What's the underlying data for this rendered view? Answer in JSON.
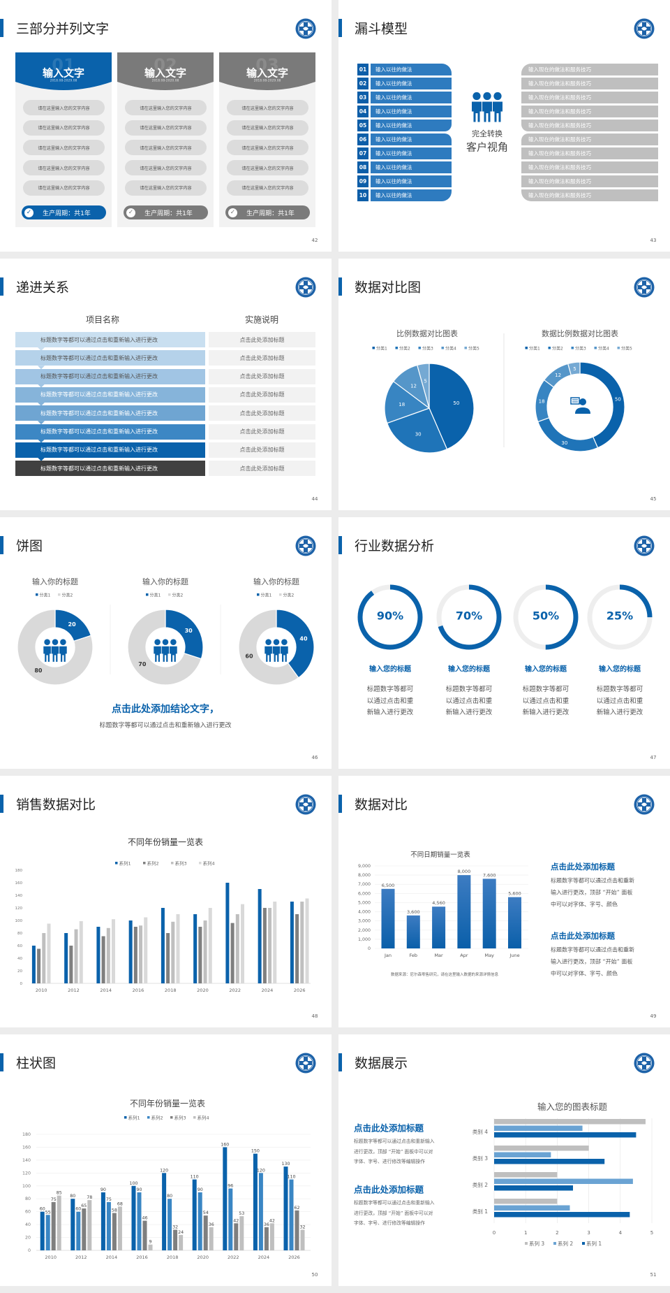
{
  "colors": {
    "accent": "#0a62ab",
    "accent_mid": "#2e7bbf",
    "gray_dark": "#7f7f7f",
    "gray_light": "#d9d9d9",
    "panel": "#f2f2f2",
    "dark_row": "#404040"
  },
  "slides": [
    {
      "title": "三部分并列文字",
      "page": "42",
      "columns": [
        {
          "number": "01",
          "header": "输入文字",
          "date": "2018.08-2029.08",
          "active": true,
          "items": [
            "请在这里输入您的文字内容",
            "请在这里输入您的文字内容",
            "请在这里输入您的文字内容",
            "请在这里输入您的文字内容",
            "请在这里输入您的文字内容"
          ],
          "footer": "生产周期：共1年"
        },
        {
          "number": "02",
          "header": "输入文字",
          "date": "2018.08-2020.08",
          "active": false,
          "items": [
            "请在这里输入您的文字内容",
            "请在这里输入您的文字内容",
            "请在这里输入您的文字内容",
            "请在这里输入您的文字内容",
            "请在这里输入您的文字内容"
          ],
          "footer": "生产周期：共1年"
        },
        {
          "number": "03",
          "header": "输入文字",
          "date": "2018.08-2029.08",
          "active": false,
          "items": [
            "请在这里输入您的文字内容",
            "请在这里输入您的文字内容",
            "请在这里输入您的文字内容",
            "请在这里输入您的文字内容",
            "请在这里输入您的文字内容"
          ],
          "footer": "生产周期：共1年"
        }
      ]
    },
    {
      "title": "漏斗模型",
      "page": "43",
      "left_items": [
        {
          "num": "01",
          "label": "输入以往的做法"
        },
        {
          "num": "02",
          "label": "输入以往的做法"
        },
        {
          "num": "03",
          "label": "输入以往的做法"
        },
        {
          "num": "04",
          "label": "输入以往的做法"
        },
        {
          "num": "05",
          "label": "输入以往的做法"
        },
        {
          "num": "06",
          "label": "输入以往的做法"
        },
        {
          "num": "07",
          "label": "输入以往的做法"
        },
        {
          "num": "08",
          "label": "输入以往的做法"
        },
        {
          "num": "09",
          "label": "输入以往的做法"
        },
        {
          "num": "10",
          "label": "输入以往的做法"
        }
      ],
      "right_items": [
        "输入现在的做法和服务技巧",
        "输入现在的做法和服务技巧",
        "输入现在的做法和服务技巧",
        "输入现在的做法和服务技巧",
        "输入现在的做法和服务技巧",
        "输入现在的做法和服务技巧",
        "输入现在的做法和服务技巧",
        "输入现在的做法和服务技巧",
        "输入现在的做法和服务技巧",
        "输入现在的做法和服务技巧"
      ],
      "center_line1": "完全转换",
      "center_line2": "客户视角"
    },
    {
      "title": "递进关系",
      "page": "44",
      "col1_header": "项目名称",
      "col2_header": "实施说明",
      "rows": [
        {
          "label": "标题数字等都可以通过点击和重新输入进行更改",
          "note": "点击此处添加标题"
        },
        {
          "label": "标题数字等都可以通过点击和重新输入进行更改",
          "note": "点击此处添加标题"
        },
        {
          "label": "标题数字等都可以通过点击和重新输入进行更改",
          "note": "点击此处添加标题"
        },
        {
          "label": "标题数字等都可以通过点击和重新输入进行更改",
          "note": "点击此处添加标题"
        },
        {
          "label": "标题数字等都可以通过点击和重新输入进行更改",
          "note": "点击此处添加标题"
        },
        {
          "label": "标题数字等都可以通过点击和重新输入进行更改",
          "note": "点击此处添加标题"
        },
        {
          "label": "标题数字等都可以通过点击和重新输入进行更改",
          "note": "点击此处添加标题"
        },
        {
          "label": "标题数字等都可以通过点击和重新输入进行更改",
          "note": "点击此处添加标题"
        }
      ]
    },
    {
      "title": "数据对比图",
      "page": "45"
    },
    {
      "title": "饼图",
      "page": "46",
      "conclusion_title": "点击此处添加结论文字，",
      "conclusion_text": "标题数字等都可以通过点击和重新输入进行更改"
    },
    {
      "title": "行业数据分析",
      "page": "47",
      "items": [
        {
          "percent_label": "90%",
          "percent": 90,
          "title": "输入您的标题",
          "lines": [
            "标题数字等都可",
            "以通过点击和重",
            "新输入进行更改"
          ]
        },
        {
          "percent_label": "70%",
          "percent": 70,
          "title": "输入您的标题",
          "lines": [
            "标题数字等都可",
            "以通过点击和重",
            "新输入进行更改"
          ]
        },
        {
          "percent_label": "50%",
          "percent": 50,
          "title": "输入您的标题",
          "lines": [
            "标题数字等都可",
            "以通过点击和重",
            "新输入进行更改"
          ]
        },
        {
          "percent_label": "25%",
          "percent": 25,
          "title": "输入您的标题",
          "lines": [
            "标题数字等都可",
            "以通过点击和重",
            "新输入进行更改"
          ]
        }
      ]
    },
    {
      "title": "销售数据对比",
      "page": "48"
    },
    {
      "title": "数据对比",
      "page": "49",
      "source": "数据来源：尼尔森零售研究，请在这里输入数据的来源详情信息",
      "blocks": [
        {
          "title": "点击此处添加标题",
          "lines": [
            "标题数字等都可以通过点击和重新",
            "输入进行更改，顶部 “开始” 面板",
            "中可以对字体、字号、颜色"
          ]
        },
        {
          "title": "点击此处添加标题",
          "lines": [
            "标题数字等都可以通过点击和重新",
            "输入进行更改，顶部 “开始” 面板",
            "中可以对字体、字号、颜色"
          ]
        }
      ]
    },
    {
      "title": "柱状图",
      "page": "50"
    },
    {
      "title": "数据展示",
      "page": "51",
      "blocks": [
        {
          "title": "点击此处添加标题",
          "lines": [
            "标题数字等都可以通过点击和重新输入",
            "进行更改，顶部 “开始” 面板中可以对",
            "字体、字号、进行修改等编辑操作"
          ]
        },
        {
          "title": "点击此处添加标题",
          "lines": [
            "标题数字等都可以通过点击和重新输入",
            "进行更改，顶部 “开始” 面板中可以对",
            "字体、字号、进行修改等编辑操作"
          ]
        }
      ]
    }
  ],
  "chart_data": [
    {
      "type": "pie",
      "title": "比例数据对比图表",
      "categories": [
        "分类1",
        "分类2",
        "分类3",
        "分类4",
        "分类5"
      ],
      "values": [
        50,
        30,
        18,
        12,
        5
      ],
      "colors": [
        "#0a62ab",
        "#1f74b8",
        "#3885c2",
        "#5596c9",
        "#75a9d3"
      ],
      "legend": "top"
    },
    {
      "type": "pie",
      "variant": "donut",
      "title": "数据比例数据对比图表",
      "categories": [
        "分类1",
        "分类2",
        "分类3",
        "分类4",
        "分类5"
      ],
      "values": [
        50,
        30,
        18,
        12,
        5
      ],
      "colors": [
        "#0a62ab",
        "#1f74b8",
        "#3885c2",
        "#5596c9",
        "#75a9d3"
      ],
      "legend": "top",
      "center_icon": "support-agent-icon"
    },
    {
      "type": "pie",
      "variant": "donut",
      "title": "输入你的标题",
      "categories": [
        "分类1",
        "分类2"
      ],
      "values": [
        20,
        80
      ],
      "colors": [
        "#0a62ab",
        "#d9d9d9"
      ],
      "legend": "top",
      "center_icon": "people-icon"
    },
    {
      "type": "pie",
      "variant": "donut",
      "title": "输入你的标题",
      "categories": [
        "分类1",
        "分类2"
      ],
      "values": [
        30,
        70
      ],
      "colors": [
        "#0a62ab",
        "#d9d9d9"
      ],
      "legend": "top",
      "center_icon": "people-icon"
    },
    {
      "type": "pie",
      "variant": "donut",
      "title": "输入你的标题",
      "categories": [
        "分类1",
        "分类2"
      ],
      "values": [
        40,
        60
      ],
      "colors": [
        "#0a62ab",
        "#d9d9d9"
      ],
      "legend": "top",
      "center_icon": "people-icon"
    },
    {
      "type": "bar",
      "title": "不同年份销量一览表",
      "categories": [
        "2010",
        "2012",
        "2014",
        "2016",
        "2018",
        "2020",
        "2022",
        "2024",
        "2026"
      ],
      "series": [
        {
          "name": "系列1",
          "color": "#0a62ab",
          "values": [
            60,
            80,
            90,
            100,
            120,
            110,
            160,
            150,
            130
          ]
        },
        {
          "name": "系列2",
          "color": "#7f7f7f",
          "values": [
            55,
            60,
            75,
            90,
            80,
            90,
            96,
            120,
            110
          ]
        },
        {
          "name": "系列3",
          "color": "#bfbfbf",
          "values": [
            80,
            86,
            88,
            92,
            98,
            100,
            110,
            120,
            130
          ]
        },
        {
          "name": "系列4",
          "color": "#d9d9d9",
          "values": [
            95,
            99,
            102,
            105,
            110,
            120,
            126,
            130,
            135
          ]
        }
      ],
      "ylim": [
        0,
        180
      ],
      "yticks": [
        0,
        20,
        40,
        60,
        80,
        100,
        120,
        140,
        160,
        180
      ],
      "legend": "top",
      "grid": false
    },
    {
      "type": "bar",
      "title": "不同日期销量一览表",
      "categories": [
        "Jan",
        "Feb",
        "Mar",
        "Apr",
        "May",
        "June"
      ],
      "values": [
        6500,
        3600,
        4560,
        8000,
        7600,
        5600
      ],
      "data_labels": [
        "6,500",
        "3,600",
        "4,560",
        "8,000",
        "7,600",
        "5,600"
      ],
      "ylim": [
        0,
        9000
      ],
      "yticks": [
        0,
        1000,
        2000,
        3000,
        4000,
        5000,
        6000,
        7000,
        8000,
        9000
      ],
      "ytick_labels": [
        "0",
        "1,000",
        "2,000",
        "3,000",
        "4,000",
        "5,000",
        "6,000",
        "7,000",
        "8,000",
        "9,000"
      ],
      "grid": true,
      "color": "#0a62ab"
    },
    {
      "type": "bar",
      "title": "不同年份销量一览表",
      "categories": [
        "2010",
        "2012",
        "2014",
        "2016",
        "2018",
        "2020",
        "2022",
        "2024",
        "2026"
      ],
      "series": [
        {
          "name": "系列1",
          "color": "#0a62ab",
          "values": [
            60,
            80,
            90,
            100,
            120,
            110,
            160,
            150,
            130
          ]
        },
        {
          "name": "系列2",
          "color": "#3a86c4",
          "values": [
            55,
            60,
            75,
            90,
            80,
            90,
            96,
            120,
            110
          ]
        },
        {
          "name": "系列3",
          "color": "#7f7f7f",
          "values": [
            75,
            65,
            58,
            46,
            32,
            54,
            42,
            36,
            62
          ]
        },
        {
          "name": "系列4",
          "color": "#bfbfbf",
          "values": [
            85,
            78,
            68,
            9,
            24,
            36,
            53,
            42,
            32
          ]
        }
      ],
      "ylim": [
        0,
        180
      ],
      "yticks": [
        0,
        20,
        40,
        60,
        80,
        100,
        120,
        140,
        160,
        180
      ],
      "legend": "top",
      "grid": true,
      "data_labels": true
    },
    {
      "type": "bar",
      "orientation": "horizontal",
      "title": "输入您的图表标题",
      "categories": [
        "类别 1",
        "类别 2",
        "类别 3",
        "类别 4"
      ],
      "series": [
        {
          "name": "系列 1",
          "color": "#0a62ab",
          "values": [
            4.3,
            2.5,
            3.5,
            4.5
          ]
        },
        {
          "name": "系列 2",
          "color": "#6aa3d3",
          "values": [
            2.4,
            4.4,
            1.8,
            2.8
          ]
        },
        {
          "name": "系列 3",
          "color": "#bfbfbf",
          "values": [
            2.0,
            2.0,
            3.0,
            4.8
          ]
        }
      ],
      "xlim": [
        0,
        5
      ],
      "xticks": [
        0,
        1,
        2,
        3,
        4,
        5
      ],
      "legend": "bottom",
      "grid": true
    }
  ]
}
